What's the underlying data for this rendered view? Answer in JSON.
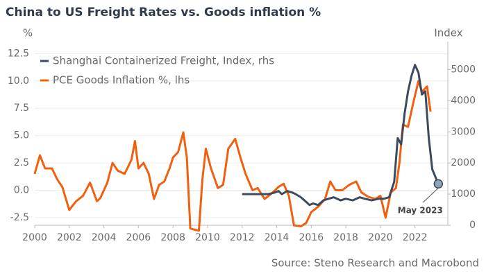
{
  "chart_data": {
    "type": "line",
    "title": "China to US Freight Rates vs. Goods inflation %",
    "y_label": "%",
    "y2_label": "Index",
    "source": "Source: Steno Research and Macrobond",
    "xlim": [
      2000,
      2023.9
    ],
    "xticks": [
      2000,
      2002,
      2004,
      2006,
      2008,
      2010,
      2012,
      2014,
      2016,
      2018,
      2020,
      2022
    ],
    "ylim": [
      -3.2,
      13.6
    ],
    "yticks": [
      -2.5,
      {
        "value": 0,
        "label": "0.0"
      },
      {
        "value": 2.5,
        "label": "2.5"
      },
      {
        "value": 5,
        "label": "5.0"
      },
      {
        "value": 7.5,
        "label": "7.5"
      },
      {
        "value": 10,
        "label": "10.0"
      },
      {
        "value": 12.5,
        "label": "12.5"
      }
    ],
    "y2lim": [
      0,
      5900
    ],
    "y2ticks": [
      0,
      1000,
      2000,
      3000,
      4000,
      5000
    ],
    "grid": true,
    "legend": "upper left",
    "series": [
      {
        "name": "Shanghai Containerized Freight, Index, rhs",
        "color": "#3d4a5c",
        "axis": "y2",
        "x": [
          2012.0,
          2012.5,
          2013.0,
          2013.5,
          2013.9,
          2014.1,
          2014.3,
          2014.6,
          2014.9,
          2015.1,
          2015.4,
          2015.7,
          2015.9,
          2016.1,
          2016.4,
          2016.7,
          2017.0,
          2017.3,
          2017.7,
          2018.0,
          2018.4,
          2018.8,
          2019.1,
          2019.5,
          2019.9,
          2020.2,
          2020.5,
          2020.8,
          2021.0,
          2021.2,
          2021.4,
          2021.6,
          2021.8,
          2022.0,
          2022.2,
          2022.4,
          2022.6,
          2022.8,
          2023.0,
          2023.35
        ],
        "values": [
          1000,
          1000,
          1000,
          1000,
          1050,
          1100,
          1000,
          1100,
          1050,
          1000,
          900,
          750,
          650,
          700,
          650,
          800,
          850,
          900,
          800,
          850,
          800,
          900,
          850,
          800,
          850,
          850,
          900,
          1400,
          2800,
          2600,
          3600,
          4300,
          4800,
          5150,
          4900,
          4200,
          4300,
          2800,
          1800,
          1330
        ]
      },
      {
        "name": "PCE Goods Inflation %, lhs",
        "color": "#f0600f",
        "axis": "y",
        "x": [
          2000.0,
          2000.3,
          2000.6,
          2001.0,
          2001.3,
          2001.6,
          2002.0,
          2002.4,
          2002.8,
          2003.2,
          2003.6,
          2003.8,
          2004.2,
          2004.5,
          2004.8,
          2005.2,
          2005.6,
          2005.8,
          2006.0,
          2006.3,
          2006.6,
          2006.9,
          2007.2,
          2007.5,
          2007.8,
          2008.0,
          2008.3,
          2008.6,
          2008.8,
          2009.0,
          2009.5,
          2009.7,
          2009.9,
          2010.2,
          2010.6,
          2010.9,
          2011.2,
          2011.6,
          2011.9,
          2012.2,
          2012.6,
          2012.9,
          2013.3,
          2013.7,
          2014.1,
          2014.4,
          2014.7,
          2015.0,
          2015.4,
          2015.7,
          2016.0,
          2016.4,
          2016.8,
          2017.1,
          2017.4,
          2017.8,
          2018.2,
          2018.6,
          2018.9,
          2019.3,
          2019.7,
          2020.0,
          2020.3,
          2020.6,
          2020.9,
          2021.1,
          2021.3,
          2021.6,
          2021.9,
          2022.2,
          2022.4,
          2022.7,
          2022.9
        ],
        "values": [
          1.5,
          3.2,
          2.0,
          2.0,
          1.0,
          0.3,
          -1.8,
          -1.0,
          -0.5,
          0.7,
          -1.0,
          -0.7,
          0.7,
          2.5,
          1.8,
          1.5,
          2.8,
          4.5,
          2.0,
          2.5,
          1.5,
          -0.8,
          0.5,
          0.8,
          2.0,
          3.0,
          3.5,
          5.3,
          3.0,
          -3.5,
          -3.7,
          1.0,
          3.8,
          2.0,
          0.2,
          0.5,
          3.8,
          4.7,
          3.0,
          1.5,
          0.0,
          0.2,
          -0.8,
          -0.3,
          0.3,
          0.6,
          -0.5,
          -3.2,
          -3.3,
          -3.0,
          -2.0,
          -1.5,
          -0.8,
          0.8,
          0.0,
          0.0,
          0.5,
          0.8,
          -0.2,
          -0.6,
          -0.8,
          -0.5,
          -2.5,
          -0.2,
          0.2,
          2.5,
          6.0,
          5.8,
          8.0,
          10.0,
          9.0,
          9.5,
          7.2
        ]
      }
    ],
    "annotation": {
      "text": "May 2023",
      "x": 2023.35,
      "y": 1330
    }
  }
}
